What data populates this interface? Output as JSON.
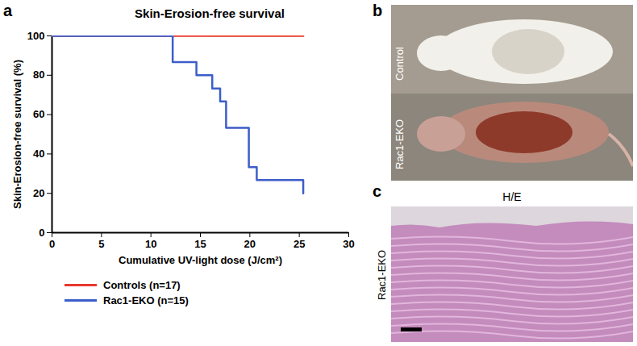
{
  "chart_data": {
    "type": "step",
    "panel": "a",
    "title": "Skin-Erosion-free survival",
    "x_label": "Cumulative UV-light dose (J/cm²)",
    "y_label": "Skin-Erosion-free survival (%)",
    "xlim": [
      0,
      30
    ],
    "xticks": [
      0,
      5,
      10,
      15,
      20,
      25,
      30
    ],
    "ylim": [
      0,
      100
    ],
    "yticks": [
      0,
      20,
      40,
      60,
      80,
      100
    ],
    "legend": "bottom",
    "series": [
      {
        "name": "Controls (n=17)",
        "color": "#e8392b",
        "x": [
          0,
          25.4
        ],
        "values": [
          100,
          100
        ]
      },
      {
        "name": "Rac1-EKO (n=15)",
        "color": "#3d5ec9",
        "x": [
          0,
          12.2,
          14.6,
          16.2,
          17,
          17.6,
          19.9,
          20.7,
          25.4
        ],
        "values": [
          100,
          86.7,
          80,
          73.3,
          66.7,
          53.3,
          33.3,
          26.7,
          20
        ]
      }
    ]
  },
  "panels": [
    {
      "label": "b",
      "texts": [
        "Control",
        "Rac1-EKO"
      ]
    },
    {
      "label": "c",
      "title": "H/E",
      "side_label": "Rac1-EKO"
    }
  ]
}
